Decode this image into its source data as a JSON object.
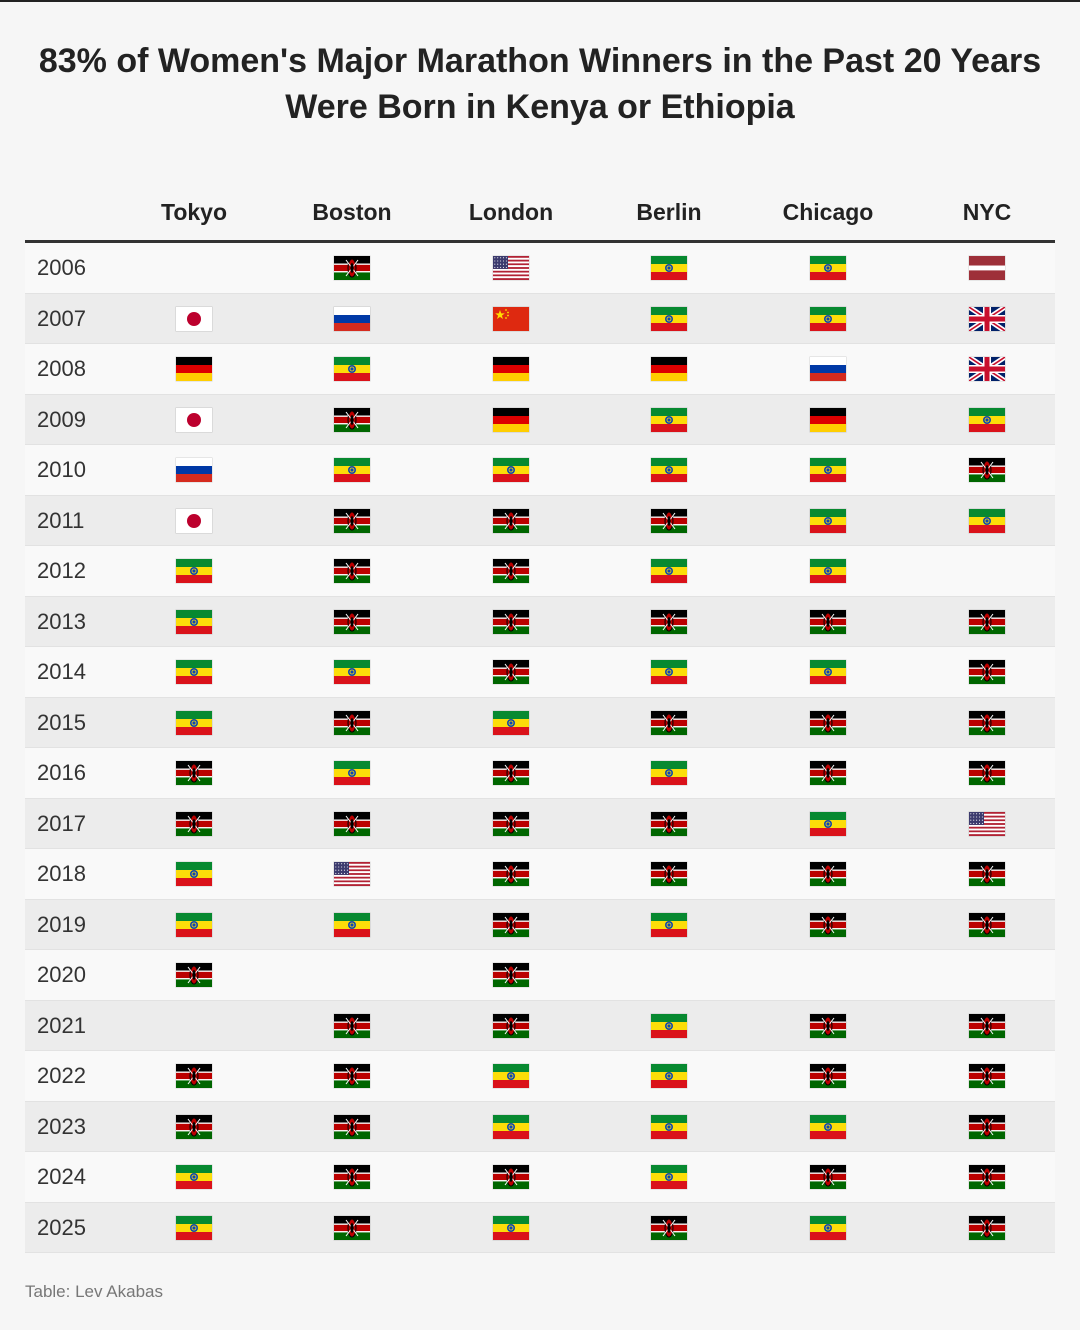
{
  "title": {
    "line1": "83% of Women's Major Marathon Winners in the Past 20 Years",
    "line2": "Were Born in Kenya or Ethiopia"
  },
  "source": "Table: Lev Akabas",
  "chart_data": {
    "type": "table",
    "columns": [
      "Tokyo",
      "Boston",
      "London",
      "Berlin",
      "Chicago",
      "NYC"
    ],
    "flag_colors": {
      "kenya": [
        "#000000",
        "#ffffff",
        "#bb0000",
        "#ffffff",
        "#006600"
      ],
      "ethiopia": [
        "#078930",
        "#fcdd09",
        "#da121a",
        "#0f47af"
      ],
      "germany": [
        "#000000",
        "#dd0000",
        "#ffce00"
      ],
      "russia": [
        "#ffffff",
        "#0039a6",
        "#d52b1e"
      ],
      "japan": [
        "#ffffff",
        "#bc002d"
      ],
      "china": [
        "#de2910",
        "#ffde00"
      ],
      "latvia": [
        "#9e3039",
        "#ffffff"
      ],
      "usa": [
        "#b22234",
        "#ffffff",
        "#3c3b6e"
      ],
      "uk": [
        "#012169",
        "#ffffff",
        "#c8102e"
      ]
    },
    "rows": [
      {
        "year": "2006",
        "flags": [
          "",
          "kenya",
          "usa",
          "ethiopia",
          "ethiopia",
          "latvia"
        ]
      },
      {
        "year": "2007",
        "flags": [
          "japan",
          "russia",
          "china",
          "ethiopia",
          "ethiopia",
          "uk"
        ]
      },
      {
        "year": "2008",
        "flags": [
          "germany",
          "ethiopia",
          "germany",
          "germany",
          "russia",
          "uk"
        ]
      },
      {
        "year": "2009",
        "flags": [
          "japan",
          "kenya",
          "germany",
          "ethiopia",
          "germany",
          "ethiopia"
        ]
      },
      {
        "year": "2010",
        "flags": [
          "russia",
          "ethiopia",
          "ethiopia",
          "ethiopia",
          "ethiopia",
          "kenya"
        ]
      },
      {
        "year": "2011",
        "flags": [
          "japan",
          "kenya",
          "kenya",
          "kenya",
          "ethiopia",
          "ethiopia"
        ]
      },
      {
        "year": "2012",
        "flags": [
          "ethiopia",
          "kenya",
          "kenya",
          "ethiopia",
          "ethiopia",
          ""
        ]
      },
      {
        "year": "2013",
        "flags": [
          "ethiopia",
          "kenya",
          "kenya",
          "kenya",
          "kenya",
          "kenya"
        ]
      },
      {
        "year": "2014",
        "flags": [
          "ethiopia",
          "ethiopia",
          "kenya",
          "ethiopia",
          "ethiopia",
          "kenya"
        ]
      },
      {
        "year": "2015",
        "flags": [
          "ethiopia",
          "kenya",
          "ethiopia",
          "kenya",
          "kenya",
          "kenya"
        ]
      },
      {
        "year": "2016",
        "flags": [
          "kenya",
          "ethiopia",
          "kenya",
          "ethiopia",
          "kenya",
          "kenya"
        ]
      },
      {
        "year": "2017",
        "flags": [
          "kenya",
          "kenya",
          "kenya",
          "kenya",
          "ethiopia",
          "usa"
        ]
      },
      {
        "year": "2018",
        "flags": [
          "ethiopia",
          "usa",
          "kenya",
          "kenya",
          "kenya",
          "kenya"
        ]
      },
      {
        "year": "2019",
        "flags": [
          "ethiopia",
          "ethiopia",
          "kenya",
          "ethiopia",
          "kenya",
          "kenya"
        ]
      },
      {
        "year": "2020",
        "flags": [
          "kenya",
          "",
          "kenya",
          "",
          "",
          ""
        ]
      },
      {
        "year": "2021",
        "flags": [
          "",
          "kenya",
          "kenya",
          "ethiopia",
          "kenya",
          "kenya"
        ]
      },
      {
        "year": "2022",
        "flags": [
          "kenya",
          "kenya",
          "ethiopia",
          "ethiopia",
          "kenya",
          "kenya"
        ]
      },
      {
        "year": "2023",
        "flags": [
          "kenya",
          "kenya",
          "ethiopia",
          "ethiopia",
          "ethiopia",
          "kenya"
        ]
      },
      {
        "year": "2024",
        "flags": [
          "ethiopia",
          "kenya",
          "kenya",
          "ethiopia",
          "kenya",
          "kenya"
        ]
      },
      {
        "year": "2025",
        "flags": [
          "ethiopia",
          "kenya",
          "ethiopia",
          "kenya",
          "ethiopia",
          "kenya"
        ]
      }
    ]
  }
}
